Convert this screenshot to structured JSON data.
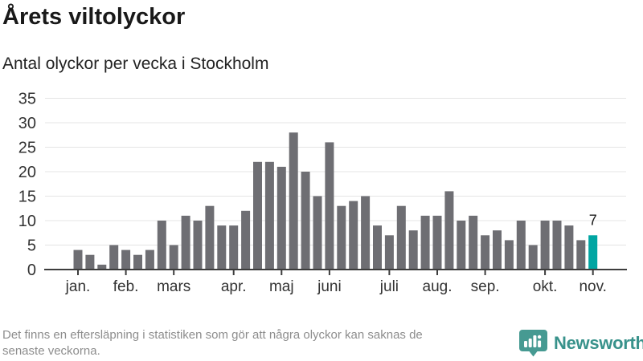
{
  "header": {
    "title": "Årets viltolyckor",
    "subtitle": "Antal olyckor per vecka i Stockholm"
  },
  "chart_data": {
    "type": "bar",
    "title": "Årets viltolyckor",
    "subtitle": "Antal olyckor per vecka i Stockholm",
    "ylabel": "",
    "xlabel": "",
    "ylim": [
      0,
      35
    ],
    "grid": true,
    "y_ticks": [
      0,
      5,
      10,
      15,
      20,
      25,
      30,
      35
    ],
    "values": [
      4,
      3,
      1,
      5,
      4,
      3,
      4,
      10,
      5,
      11,
      10,
      13,
      9,
      9,
      12,
      22,
      22,
      21,
      28,
      20,
      15,
      26,
      13,
      14,
      15,
      9,
      7,
      13,
      8,
      11,
      11,
      16,
      10,
      11,
      7,
      8,
      6,
      10,
      5,
      10,
      10,
      9,
      6,
      7
    ],
    "month_ticks": [
      {
        "label": "jan.",
        "week_index": 0
      },
      {
        "label": "feb.",
        "week_index": 4
      },
      {
        "label": "mars",
        "week_index": 8
      },
      {
        "label": "apr.",
        "week_index": 13
      },
      {
        "label": "maj",
        "week_index": 17
      },
      {
        "label": "juni",
        "week_index": 21
      },
      {
        "label": "juli",
        "week_index": 26
      },
      {
        "label": "aug.",
        "week_index": 30
      },
      {
        "label": "sep.",
        "week_index": 34
      },
      {
        "label": "okt.",
        "week_index": 39
      },
      {
        "label": "nov.",
        "week_index": 43
      }
    ],
    "bar_color": "#6e6e73",
    "highlight": {
      "index": 43,
      "value": 7,
      "label": "7",
      "color": "#00a5a2"
    },
    "gridline_color": "#e4e4e4",
    "axis_color": "#3d3d3d",
    "label_color": "#333333"
  },
  "footer": {
    "note_lines": [
      "Det finns en eftersläpning i statistiken som gör att några olyckor kan saknas de",
      "senaste veckorna."
    ],
    "brand": "Newsworthy",
    "brand_color": "#38928b"
  }
}
